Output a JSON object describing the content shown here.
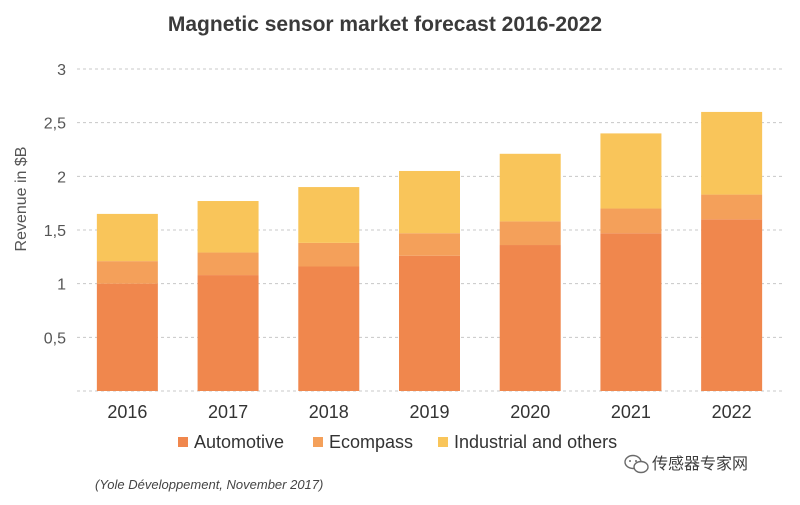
{
  "chart_data": {
    "type": "bar",
    "stacked": true,
    "title": "Magnetic sensor market forecast 2016-2022",
    "xlabel": "",
    "ylabel": "Revenue in $B",
    "categories": [
      "2016",
      "2017",
      "2018",
      "2019",
      "2020",
      "2021",
      "2022"
    ],
    "series": [
      {
        "name": "Automotive",
        "color": "#f0874d",
        "values": [
          1.0,
          1.08,
          1.16,
          1.26,
          1.36,
          1.47,
          1.6
        ]
      },
      {
        "name": "Ecompass",
        "color": "#f4a05a",
        "values": [
          0.21,
          0.21,
          0.22,
          0.21,
          0.22,
          0.23,
          0.23
        ]
      },
      {
        "name": "Industrial and others",
        "color": "#f9c55a",
        "values": [
          0.44,
          0.48,
          0.52,
          0.58,
          0.63,
          0.7,
          0.77
        ]
      }
    ],
    "ylim": [
      0,
      3
    ],
    "yticks": [
      0,
      0.5,
      1,
      1.5,
      2,
      2.5,
      3
    ],
    "ytick_labels": [
      "",
      "0,5",
      "1",
      "1,5",
      "2",
      "2,5",
      "3"
    ],
    "grid": true,
    "legend_position": "bottom"
  },
  "source_note": "(Yole Développement, November 2017)",
  "watermark": {
    "icon": "wechat-icon",
    "text": "传感器专家网"
  }
}
